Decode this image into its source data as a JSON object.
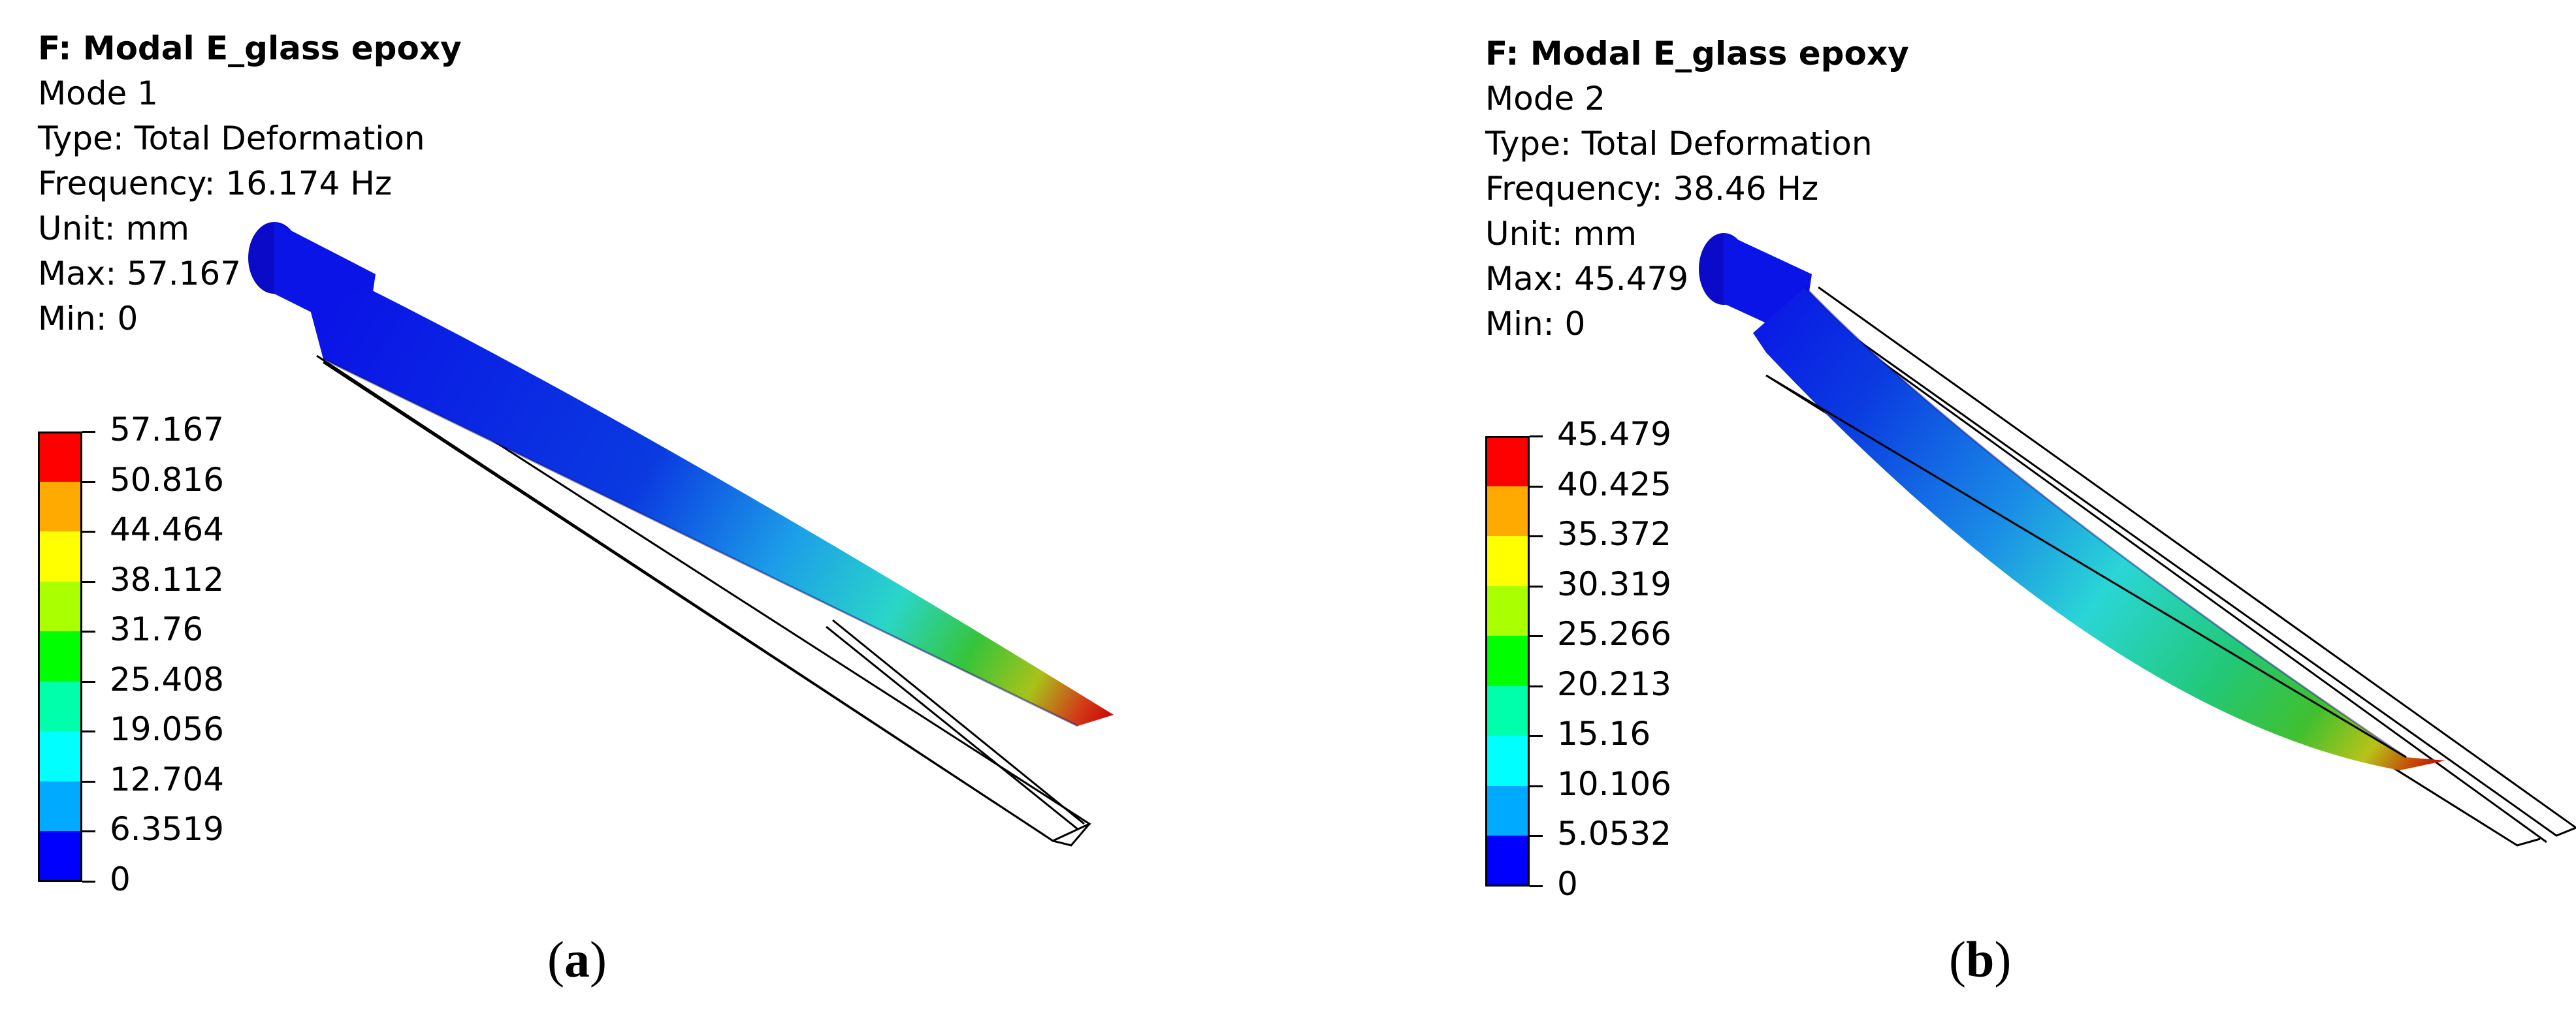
{
  "panels": [
    {
      "id": "a",
      "header": {
        "title": "F: Modal E_glass epoxy",
        "mode": "Mode 1",
        "type": "Type: Total Deformation",
        "frequency": "Frequency: 16.174 Hz",
        "unit": "Unit: mm",
        "max": "Max: 57.167",
        "min": "Min: 0"
      },
      "legend_labels": [
        "57.167",
        "50.816",
        "44.464",
        "38.112",
        "31.76",
        "25.408",
        "19.056",
        "12.704",
        "6.3519",
        "0"
      ],
      "caption": "a"
    },
    {
      "id": "b",
      "header": {
        "title": "F: Modal E_glass epoxy",
        "mode": "Mode 2",
        "type": "Type: Total Deformation",
        "frequency": "Frequency: 38.46 Hz",
        "unit": "Unit: mm",
        "max": "Max: 45.479",
        "min": "Min: 0"
      },
      "legend_labels": [
        "45.479",
        "40.425",
        "35.372",
        "30.319",
        "25.266",
        "20.213",
        "15.16",
        "10.106",
        "5.0532",
        "0"
      ],
      "caption": "b"
    }
  ],
  "legend_colors": [
    "#ff0000",
    "#ffaa00",
    "#ffff00",
    "#aaff00",
    "#00ff00",
    "#00ffaa",
    "#00ffff",
    "#00aaff",
    "#0000ff"
  ]
}
